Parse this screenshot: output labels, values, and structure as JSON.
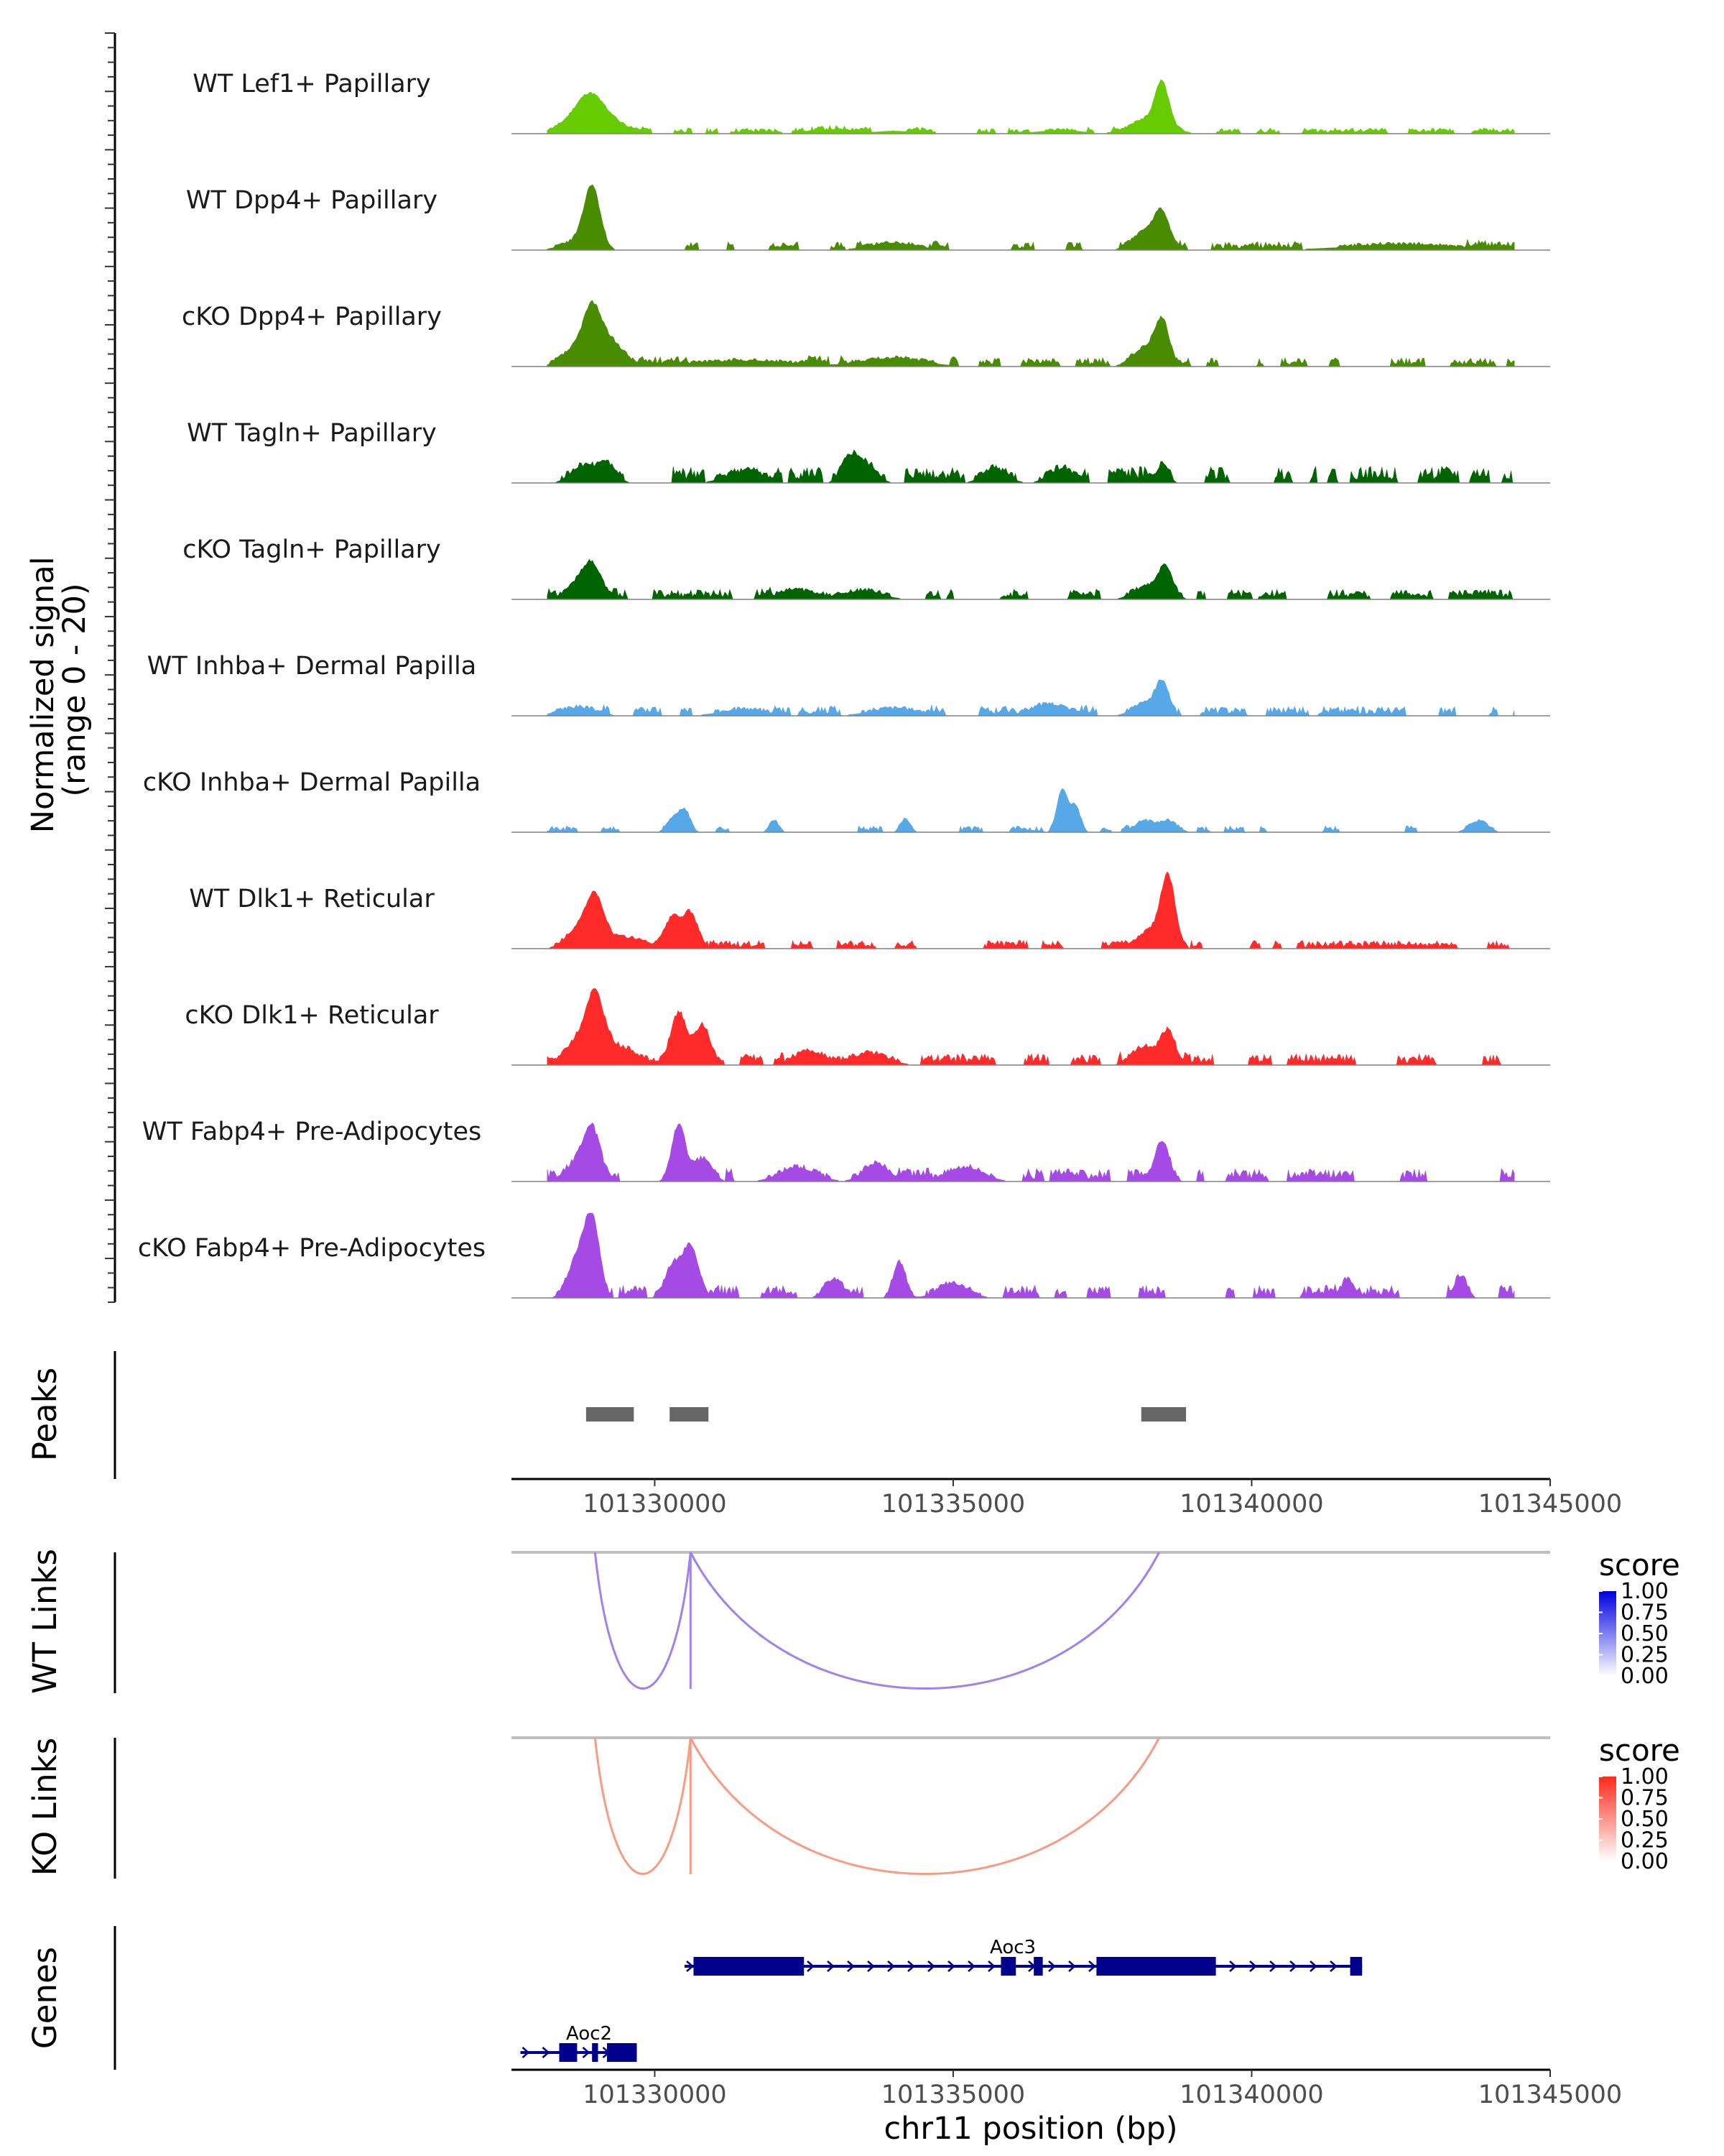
{
  "chart_data": {
    "type": "coverage",
    "region": {
      "chromosome": "chr11",
      "start": 101327600,
      "end": 101345000
    },
    "xlabel": "chr11 position (bp)",
    "xticks": [
      "101330000",
      "101335000",
      "101340000",
      "101345000"
    ],
    "xtick_values": [
      101330000,
      101335000,
      101340000,
      101345000
    ],
    "coverage": {
      "ylabel_line1": "Normalized signal",
      "ylabel_line2": "(range 0 - 20)",
      "range": [
        0,
        20
      ],
      "tracks": [
        {
          "name": "WT Lef1+ Papillary",
          "color": "#66cc00",
          "peaks": [
            [
              101328900,
              5.5,
              220
            ],
            [
              101329100,
              3.5,
              350
            ],
            [
              101328600,
              1.5,
              300
            ],
            [
              101338500,
              9.5,
              110
            ],
            [
              101338300,
              3.5,
              300
            ],
            [
              101336800,
              0.8,
              350
            ],
            [
              101333000,
              0.6,
              300
            ],
            [
              101334000,
              0.6,
              300
            ]
          ],
          "noise": 0.9,
          "seed": 11
        },
        {
          "name": "WT Dpp4+ Papillary",
          "color": "#4a8c00",
          "peaks": [
            [
              101328950,
              14,
              130
            ],
            [
              101328700,
              2,
              250
            ],
            [
              101338500,
              8,
              130
            ],
            [
              101338200,
              4,
              200
            ],
            [
              101334000,
              1.5,
              400
            ],
            [
              101342500,
              1.2,
              900
            ]
          ],
          "noise": 1.3,
          "seed": 23
        },
        {
          "name": "cKO Dpp4+ Papillary",
          "color": "#4a8c00",
          "peaks": [
            [
              101328950,
              13,
              160
            ],
            [
              101329300,
              5,
              200
            ],
            [
              101328600,
              3,
              200
            ],
            [
              101338500,
              10,
              120
            ],
            [
              101338200,
              4,
              200
            ],
            [
              101334000,
              1.8,
              500
            ],
            [
              101331500,
              1.2,
              800
            ]
          ],
          "noise": 1.4,
          "seed": 37
        },
        {
          "name": "WT Tagln+ Papillary",
          "color": "#006400",
          "peaks": [
            [
              101328800,
              3.5,
              200
            ],
            [
              101329200,
              4,
              150
            ],
            [
              101333300,
              6,
              150
            ],
            [
              101335700,
              3,
              200
            ],
            [
              101336800,
              3,
              200
            ],
            [
              101338500,
              4,
              100
            ],
            [
              101333600,
              3,
              150
            ],
            [
              101331500,
              2.5,
              300
            ]
          ],
          "noise": 2.6,
          "seed": 41
        },
        {
          "name": "cKO Tagln+ Papillary",
          "color": "#006400",
          "peaks": [
            [
              101328950,
              7,
              160
            ],
            [
              101328700,
              3,
              200
            ],
            [
              101338550,
              7,
              130
            ],
            [
              101338200,
              2.5,
              200
            ],
            [
              101332400,
              2,
              300
            ],
            [
              101333500,
              1.8,
              300
            ]
          ],
          "noise": 1.6,
          "seed": 53
        },
        {
          "name": "WT Inhba+ Dermal Papilla",
          "color": "#56a8e6",
          "peaks": [
            [
              101338500,
              7.5,
              110
            ],
            [
              101338200,
              2.5,
              200
            ],
            [
              101336600,
              2.5,
              300
            ],
            [
              101328700,
              1.8,
              300
            ],
            [
              101334000,
              1.5,
              400
            ],
            [
              101331500,
              1.3,
              400
            ]
          ],
          "noise": 1.5,
          "seed": 67
        },
        {
          "name": "cKO Inhba+ Dermal Papilla",
          "color": "#56a8e6",
          "peaks": [
            [
              101336830,
              10,
              90
            ],
            [
              101337050,
              6,
              80
            ],
            [
              101330500,
              5,
              90
            ],
            [
              101330300,
              3,
              100
            ],
            [
              101338200,
              2.5,
              150
            ],
            [
              101338600,
              2.5,
              150
            ],
            [
              101343800,
              2.5,
              150
            ],
            [
              101334200,
              3,
              80
            ],
            [
              101332000,
              2.5,
              80
            ]
          ],
          "noise": 1.0,
          "seed": 71,
          "sparse": true
        },
        {
          "name": "WT Dlk1+ Reticular",
          "color": "#ff2a2a",
          "peaks": [
            [
              101329000,
              11,
              150
            ],
            [
              101328700,
              4,
              200
            ],
            [
              101330600,
              8,
              120
            ],
            [
              101330300,
              7,
              130
            ],
            [
              101338600,
              16,
              120
            ],
            [
              101338300,
              4,
              200
            ],
            [
              101329500,
              2.5,
              300
            ]
          ],
          "noise": 1.3,
          "seed": 79
        },
        {
          "name": "cKO Dlk1+ Reticular",
          "color": "#ff2a2a",
          "peaks": [
            [
              101329000,
              14,
              150
            ],
            [
              101328700,
              5,
              200
            ],
            [
              101330400,
              12,
              130
            ],
            [
              101330800,
              9,
              130
            ],
            [
              101338600,
              7.5,
              120
            ],
            [
              101338200,
              4,
              200
            ],
            [
              101329400,
              4,
              300
            ],
            [
              101332600,
              3,
              250
            ],
            [
              101333600,
              2.5,
              300
            ]
          ],
          "noise": 1.8,
          "seed": 83
        },
        {
          "name": "WT Fabp4+ Pre-Adipocytes",
          "color": "#a64ae6",
          "peaks": [
            [
              101328950,
              11,
              140
            ],
            [
              101328700,
              4,
              200
            ],
            [
              101330400,
              13,
              110
            ],
            [
              101330800,
              5,
              150
            ],
            [
              101338500,
              9,
              120
            ],
            [
              101333700,
              4,
              200
            ],
            [
              101332400,
              3,
              300
            ],
            [
              101335200,
              3,
              300
            ]
          ],
          "noise": 2.0,
          "seed": 89
        },
        {
          "name": "cKO Fabp4+ Pre-Adipocytes",
          "color": "#a64ae6",
          "peaks": [
            [
              101328950,
              18,
              120
            ],
            [
              101328700,
              9,
              150
            ],
            [
              101330600,
              12,
              130
            ],
            [
              101330300,
              7,
              130
            ],
            [
              101334100,
              8,
              100
            ],
            [
              101333000,
              4,
              150
            ],
            [
              101341600,
              4,
              100
            ],
            [
              101343500,
              5,
              100
            ],
            [
              101335000,
              3,
              250
            ]
          ],
          "noise": 2.0,
          "seed": 97
        }
      ]
    },
    "peaks": {
      "title": "Peaks",
      "color": "#666666",
      "intervals": [
        [
          101328850,
          101329650
        ],
        [
          101330250,
          101330900
        ],
        [
          101338150,
          101338900
        ]
      ]
    },
    "links": [
      {
        "title": "WT Links",
        "legend_title": "score",
        "color": "#9f82f0",
        "scale_color": "#0000e0",
        "legend_ticks": [
          "1.00",
          "0.75",
          "0.50",
          "0.25",
          "0.00"
        ],
        "arcs": [
          [
            101329000,
            101330600,
            1.0
          ],
          [
            101330600,
            101338450,
            1.0
          ],
          [
            101330600,
            101330600,
            1.0
          ]
        ]
      },
      {
        "title": "KO Links",
        "legend_title": "score",
        "color": "#f79c82",
        "scale_color": "#ff2a1a",
        "legend_ticks": [
          "1.00",
          "0.75",
          "0.50",
          "0.25",
          "0.00"
        ],
        "arcs": [
          [
            101329000,
            101330600,
            1.0
          ],
          [
            101330600,
            101338450,
            1.0
          ],
          [
            101330600,
            101330600,
            1.0
          ]
        ]
      }
    ],
    "genes": {
      "title": "Genes",
      "color": "#00008b",
      "items": [
        {
          "name": "Aoc3",
          "start": 101330500,
          "end": 101341850,
          "exons": [
            [
              101330650,
              101332500
            ],
            [
              101335800,
              101336050
            ],
            [
              101336350,
              101336500
            ],
            [
              101337400,
              101339400
            ],
            [
              101341650,
              101341850
            ]
          ]
        },
        {
          "name": "Aoc2",
          "start": 101327750,
          "end": 101329700,
          "exons": [
            [
              101328400,
              101328700
            ],
            [
              101328950,
              101329050
            ],
            [
              101329200,
              101329700
            ]
          ]
        }
      ]
    }
  }
}
